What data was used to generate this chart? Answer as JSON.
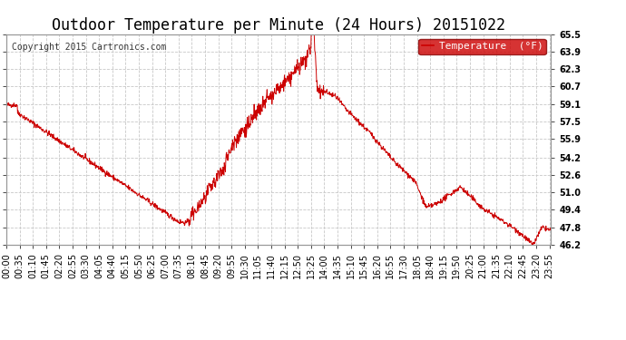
{
  "title": "Outdoor Temperature per Minute (24 Hours) 20151022",
  "copyright": "Copyright 2015 Cartronics.com",
  "line_color": "#cc0000",
  "legend_label": "Temperature  (°F)",
  "legend_bg": "#cc0000",
  "legend_text_color": "#ffffff",
  "bg_color": "#ffffff",
  "grid_color": "#c8c8c8",
  "yticks": [
    46.2,
    47.8,
    49.4,
    51.0,
    52.6,
    54.2,
    55.9,
    57.5,
    59.1,
    60.7,
    62.3,
    63.9,
    65.5
  ],
  "ymin": 46.2,
  "ymax": 65.5,
  "title_fontsize": 12,
  "axis_fontsize": 7,
  "copyright_fontsize": 7,
  "legend_fontsize": 8
}
